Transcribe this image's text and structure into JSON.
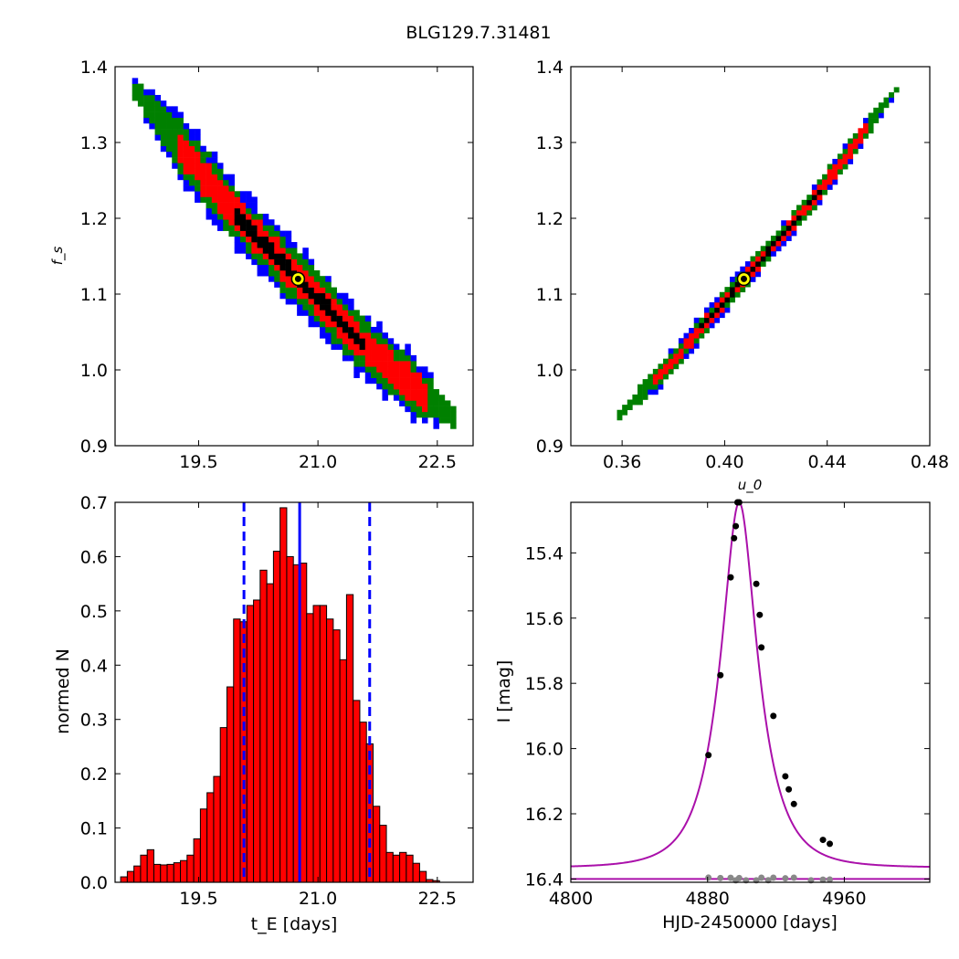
{
  "figure_title": "BLG129.7.31481",
  "colors": {
    "blue": "#0000ff",
    "green": "#008000",
    "red": "#ff0000",
    "black": "#000000",
    "best_fit_marker": "#ffff00",
    "histogram_bar": "#ff0000",
    "model_curve": "#aa10aa",
    "residual_points": "#888888"
  },
  "chart_data": [
    {
      "type": "heatmap",
      "name": "tE-fs",
      "xlabel": "",
      "ylabel": "f_s",
      "xlim": [
        18.45,
        22.95
      ],
      "ylim": [
        0.9,
        1.4
      ],
      "xticks": [
        19.5,
        21.0,
        22.5
      ],
      "xtick_labels": [
        "19.5",
        "21.0",
        "22.5"
      ],
      "yticks": [
        0.9,
        1.0,
        1.1,
        1.2,
        1.3,
        1.4
      ],
      "ytick_labels": [
        "0.9",
        "1.0",
        "1.1",
        "1.2",
        "1.3",
        "1.4"
      ],
      "confidence_levels": [
        "black",
        "red",
        "green",
        "blue"
      ],
      "ridge_points": [
        [
          18.7,
          1.37
        ],
        [
          19.3,
          1.29
        ],
        [
          20.0,
          1.2
        ],
        [
          20.75,
          1.12
        ],
        [
          21.5,
          1.04
        ],
        [
          22.0,
          0.995
        ],
        [
          22.75,
          0.935
        ]
      ],
      "best_fit": {
        "x": 20.75,
        "y": 1.12
      }
    },
    {
      "type": "heatmap",
      "name": "u0-fs",
      "xlabel": "u_0",
      "ylabel": "",
      "xlim": [
        0.34,
        0.48
      ],
      "ylim": [
        0.9,
        1.4
      ],
      "xticks": [
        0.36,
        0.4,
        0.44,
        0.48
      ],
      "xtick_labels": [
        "0.36",
        "0.40",
        "0.44",
        "0.48"
      ],
      "yticks": [
        0.9,
        1.0,
        1.1,
        1.2,
        1.3,
        1.4
      ],
      "ytick_labels": [
        "0.9",
        "1.0",
        "1.1",
        "1.2",
        "1.3",
        "1.4"
      ],
      "confidence_levels": [
        "black",
        "red",
        "green",
        "blue"
      ],
      "ridge_points": [
        [
          0.3575,
          0.935
        ],
        [
          0.378,
          1.005
        ],
        [
          0.4075,
          1.12
        ],
        [
          0.4335,
          1.22
        ],
        [
          0.468,
          1.375
        ]
      ],
      "best_fit": {
        "x": 0.4075,
        "y": 1.12
      }
    },
    {
      "type": "bar",
      "name": "tE-histogram",
      "xlabel": "t_E [days]",
      "ylabel": "normed N",
      "xlim": [
        18.45,
        22.95
      ],
      "ylim": [
        0.0,
        0.7
      ],
      "xticks": [
        19.5,
        21.0,
        22.5
      ],
      "xtick_labels": [
        "19.5",
        "21.0",
        "22.5"
      ],
      "yticks": [
        0.0,
        0.1,
        0.2,
        0.3,
        0.4,
        0.5,
        0.6,
        0.7
      ],
      "ytick_labels": [
        "0.0",
        "0.1",
        "0.2",
        "0.3",
        "0.4",
        "0.5",
        "0.6",
        "0.7"
      ],
      "bin_start": 18.52,
      "bin_width": 0.0835,
      "values": [
        0.01,
        0.02,
        0.03,
        0.05,
        0.06,
        0.033,
        0.032,
        0.033,
        0.036,
        0.04,
        0.05,
        0.08,
        0.135,
        0.165,
        0.195,
        0.285,
        0.36,
        0.485,
        0.48,
        0.51,
        0.52,
        0.575,
        0.55,
        0.61,
        0.69,
        0.6,
        0.585,
        0.588,
        0.495,
        0.51,
        0.51,
        0.485,
        0.465,
        0.41,
        0.53,
        0.335,
        0.295,
        0.255,
        0.14,
        0.105,
        0.055,
        0.05,
        0.055,
        0.05,
        0.035,
        0.02,
        0.005,
        0.003
      ],
      "median_line": 20.77,
      "interval_lines": [
        20.07,
        21.65
      ]
    },
    {
      "type": "line",
      "name": "light-curve",
      "xlabel": "HJD-2450000 [days]",
      "ylabel": "I [mag]",
      "xlim": [
        4800,
        5010
      ],
      "ylim": [
        16.41,
        15.245
      ],
      "xticks": [
        4800,
        4880,
        4960
      ],
      "xtick_labels": [
        "4800",
        "4880",
        "4960"
      ],
      "yticks": [
        15.4,
        15.6,
        15.8,
        16.0,
        16.2,
        16.4
      ],
      "ytick_labels": [
        "15.4",
        "15.6",
        "15.8",
        "16.0",
        "16.2",
        "16.4"
      ],
      "model": {
        "t0": 4898.5,
        "tE": 20.8,
        "u0": 0.4075,
        "baseline": 16.365
      },
      "observations": {
        "x": [
          4880.5,
          4887.5,
          4893.5,
          4895.5,
          4896.5,
          4897.5,
          4898.5,
          4908.5,
          4910.5,
          4911.5,
          4918.5,
          4925.5,
          4927.5,
          4930.5,
          4947.5,
          4951.5
        ],
        "y": [
          16.02,
          15.775,
          15.475,
          15.355,
          15.318,
          15.245,
          15.245,
          15.495,
          15.59,
          15.69,
          15.9,
          16.085,
          16.125,
          16.17,
          16.28,
          16.292
        ]
      },
      "residual_line": 16.4,
      "residual_x": [
        4880.5,
        4887.5,
        4893.5,
        4896.5,
        4898.5,
        4902.5,
        4908.5,
        4911.5,
        4915.5,
        4918.5,
        4925.5,
        4930.5,
        4940.5,
        4947.5,
        4951.5
      ]
    }
  ]
}
